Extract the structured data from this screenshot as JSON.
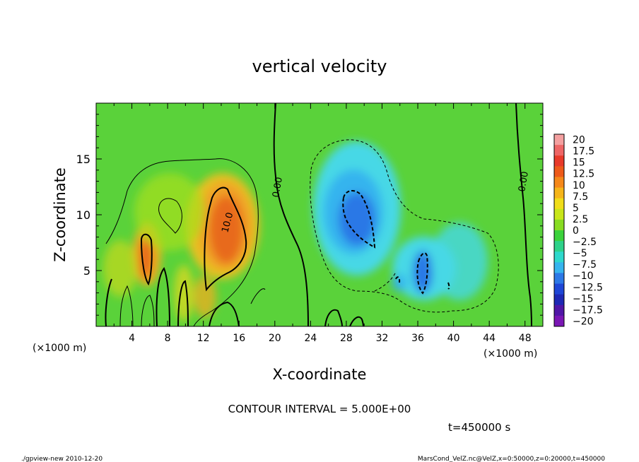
{
  "chart_data": {
    "type": "heatmap",
    "title": "vertical velocity",
    "xlabel": "X-coordinate",
    "ylabel": "Z-coordinate",
    "x_unit": "(×1000 m)",
    "y_unit": "(×1000 m)",
    "xlim": [
      0,
      50
    ],
    "ylim": [
      0,
      20
    ],
    "x_ticks": [
      "4",
      "8",
      "12",
      "16",
      "20",
      "24",
      "28",
      "32",
      "36",
      "40",
      "44",
      "48"
    ],
    "y_ticks": [
      "5",
      "10",
      "15"
    ],
    "contour_labels": [
      "0.00",
      "10.0",
      "0.00"
    ],
    "contour_interval_text": "CONTOUR INTERVAL = 5.000E+00",
    "time_text": "t=450000 s",
    "footer_left": "./gpview-new  2010-12-20",
    "footer_right": "MarsCond_VelZ.nc@VelZ,x=0:50000,z=0:20000,t=450000",
    "colorbar": {
      "labels": [
        "20",
        "17.5",
        "15",
        "12.5",
        "10",
        "7.5",
        "5",
        "2.5",
        "0",
        "−2.5",
        "−5",
        "−7.5",
        "−10",
        "−12.5",
        "−15",
        "−17.5",
        "−20"
      ],
      "colors": [
        "#f4a0a0",
        "#ee6666",
        "#e83a2a",
        "#ee5a1a",
        "#f5881a",
        "#f5b51a",
        "#f0dd1a",
        "#c8e61a",
        "#88dc22",
        "#3cd23c",
        "#2ed28a",
        "#2ed8cc",
        "#36b4ee",
        "#2c78e6",
        "#1e46d6",
        "#1e28b4",
        "#5016a6",
        "#7a16b4"
      ]
    },
    "field": {
      "background": "#5ad23a",
      "updraft_color": "#f0a028",
      "updraft_core_color": "#e8641a",
      "downdraft_color": "#46d8e6",
      "downdraft_core_color": "#2c82e8"
    }
  }
}
